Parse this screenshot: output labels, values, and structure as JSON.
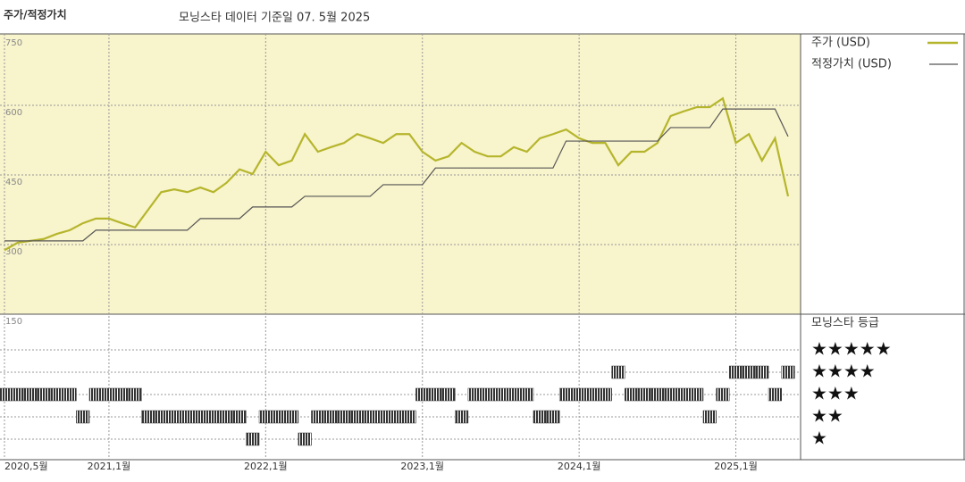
{
  "chart_data": [
    {
      "type": "line",
      "title": "주가/적정가치",
      "subtitle": "모닝스타 데이터 기준일 07. 5월 2025",
      "x": [
        "2020-05",
        "2020-06",
        "2020-07",
        "2020-08",
        "2020-09",
        "2020-10",
        "2020-11",
        "2020-12",
        "2021-01",
        "2021-02",
        "2021-03",
        "2021-04",
        "2021-05",
        "2021-06",
        "2021-07",
        "2021-08",
        "2021-09",
        "2021-10",
        "2021-11",
        "2021-12",
        "2022-01",
        "2022-02",
        "2022-03",
        "2022-04",
        "2022-05",
        "2022-06",
        "2022-07",
        "2022-08",
        "2022-09",
        "2022-10",
        "2022-11",
        "2022-12",
        "2023-01",
        "2023-02",
        "2023-03",
        "2023-04",
        "2023-05",
        "2023-06",
        "2023-07",
        "2023-08",
        "2023-09",
        "2023-10",
        "2023-11",
        "2023-12",
        "2024-01",
        "2024-02",
        "2024-03",
        "2024-04",
        "2024-05",
        "2024-06",
        "2024-07",
        "2024-08",
        "2024-09",
        "2024-10",
        "2024-11",
        "2024-12",
        "2025-01",
        "2025-02",
        "2025-03",
        "2025-04",
        "2025-05"
      ],
      "xticks": [
        {
          "value": "2020-05",
          "label": "2020,5월"
        },
        {
          "value": "2021-01",
          "label": "2021,1월"
        },
        {
          "value": "2022-01",
          "label": "2022,1월"
        },
        {
          "value": "2023-01",
          "label": "2023,1월"
        },
        {
          "value": "2024-01",
          "label": "2024,1월"
        },
        {
          "value": "2025-01",
          "label": "2025,1월"
        }
      ],
      "ylim": [
        150,
        750
      ],
      "yticks": [
        150,
        300,
        450,
        600,
        750
      ],
      "grid": true,
      "series": [
        {
          "name": "주가 (USD)",
          "color": "#b5b52c",
          "values": [
            288,
            304,
            308,
            312,
            323,
            331,
            346,
            356,
            356,
            346,
            337,
            375,
            413,
            419,
            413,
            423,
            413,
            433,
            462,
            452,
            500,
            471,
            481,
            538,
            500,
            510,
            519,
            538,
            529,
            519,
            538,
            538,
            500,
            481,
            490,
            519,
            500,
            490,
            490,
            510,
            500,
            529,
            538,
            548,
            529,
            519,
            519,
            471,
            500,
            500,
            519,
            577,
            587,
            596,
            596,
            615,
            519,
            538,
            481,
            529,
            404
          ]
        },
        {
          "name": "적정가치 (USD)",
          "color": "#555555",
          "values": [
            308,
            308,
            308,
            308,
            308,
            308,
            308,
            331,
            331,
            331,
            331,
            331,
            331,
            331,
            331,
            356,
            356,
            356,
            356,
            381,
            381,
            381,
            381,
            404,
            404,
            404,
            404,
            404,
            404,
            429,
            429,
            429,
            429,
            465,
            465,
            465,
            465,
            465,
            465,
            465,
            465,
            465,
            465,
            523,
            523,
            523,
            523,
            523,
            523,
            523,
            523,
            552,
            552,
            552,
            552,
            592,
            592,
            592,
            592,
            592,
            533
          ]
        }
      ]
    },
    {
      "type": "rating-strip",
      "title": "모닝스타 등급",
      "color": "#333333",
      "yticks": [
        {
          "value": 5,
          "label": "★★★★★"
        },
        {
          "value": 4,
          "label": "★★★★"
        },
        {
          "value": 3,
          "label": "★★★"
        },
        {
          "value": 2,
          "label": "★★"
        },
        {
          "value": 1,
          "label": "★"
        }
      ],
      "values": [
        3,
        3,
        3,
        3,
        3,
        3,
        2,
        3,
        3,
        3,
        3,
        2,
        2,
        2,
        2,
        2,
        2,
        2,
        2,
        1,
        2,
        2,
        2,
        1,
        2,
        2,
        2,
        2,
        2,
        2,
        2,
        2,
        3,
        3,
        3,
        2,
        3,
        3,
        3,
        3,
        3,
        2,
        2,
        3,
        3,
        3,
        3,
        4,
        3,
        3,
        3,
        3,
        3,
        3,
        2,
        3,
        4,
        4,
        4,
        3,
        4
      ]
    }
  ]
}
